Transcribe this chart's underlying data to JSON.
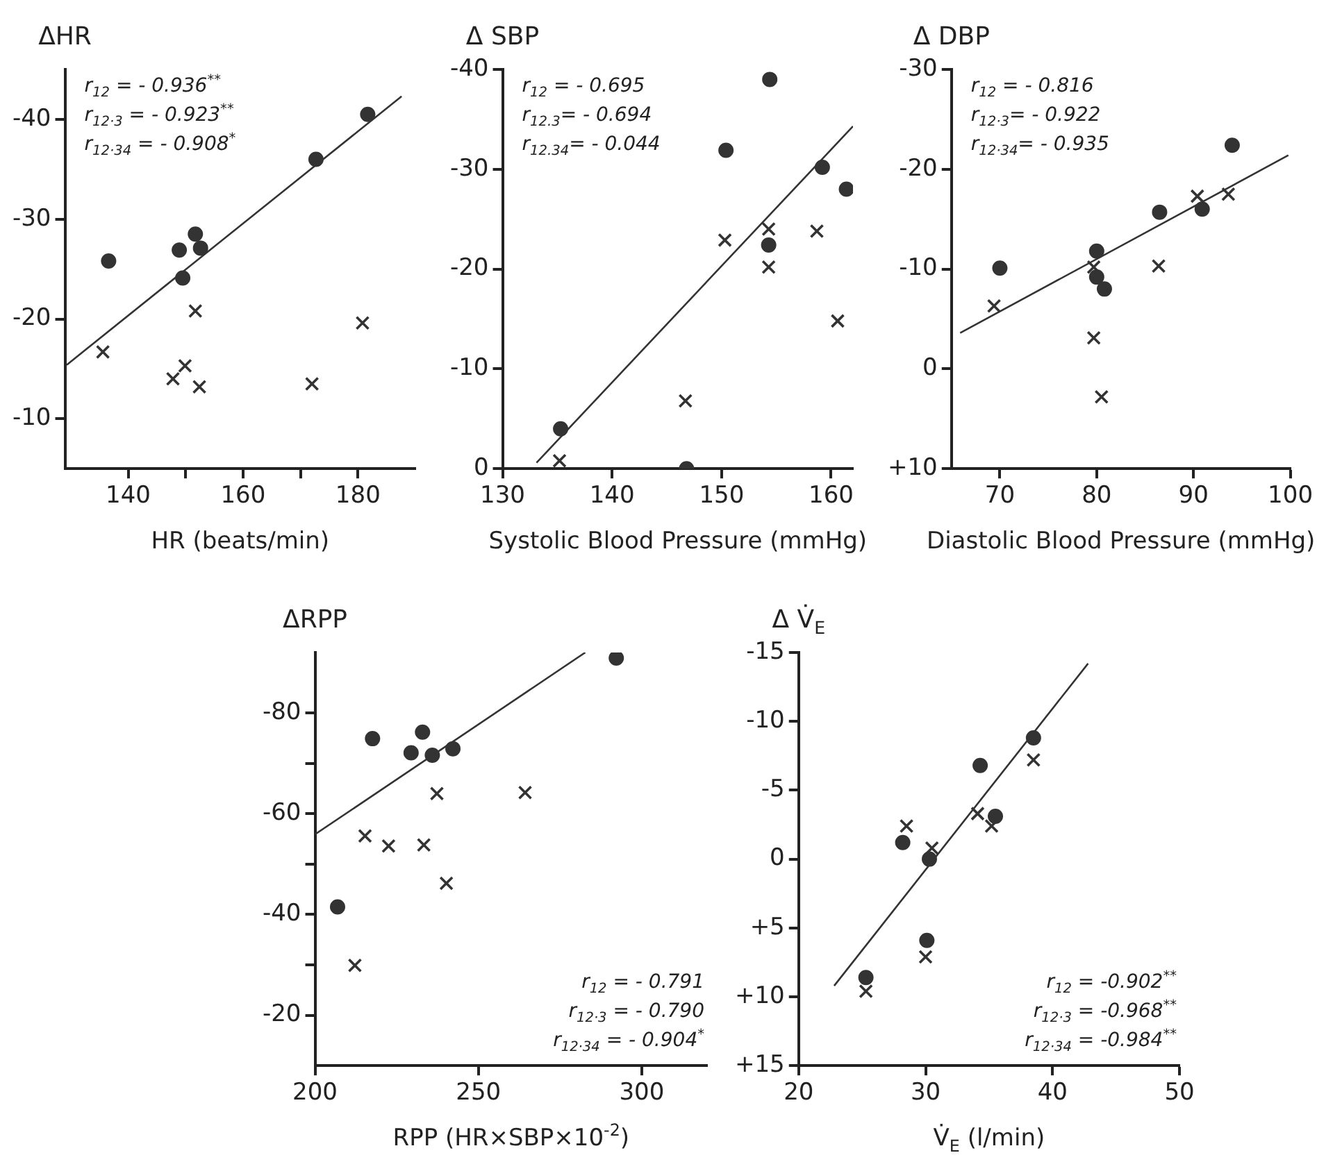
{
  "chart_data": [
    {
      "type": "scatter",
      "xlabel": "HR (beats/min)",
      "ylabel": "ΔHR",
      "xlim": [
        129,
        190
      ],
      "xticks": [
        140,
        {
          "value": 150,
          "label": null
        },
        160,
        {
          "value": 170,
          "label": null
        },
        180
      ],
      "ylim": [
        -5,
        -45
      ],
      "yticks": [
        -10,
        -20,
        -30,
        -40
      ],
      "grid": false,
      "legend": false,
      "annotations": [
        "r$_{12}$ = - 0.936$^{**}$",
        "r$_{12·3}$ = - 0.923$^{**}$",
        "r$_{12·34}$ = - 0.908$^{*}$"
      ],
      "series": [
        {
          "type": "scatter",
          "marker": "circle",
          "color": "#333333",
          "x": [
            136.6,
            148.9,
            149.5,
            151.7,
            152.6,
            172.7,
            181.7
          ],
          "values": [
            -25.8,
            -26.9,
            -24.1,
            -28.5,
            -27.1,
            -36,
            -40.5
          ]
        },
        {
          "type": "scatter",
          "marker": "cross",
          "color": "#333333",
          "x": [
            135.6,
            151.7,
            147.8,
            149.9,
            152.4,
            172,
            180.8
          ],
          "values": [
            -16.7,
            -20.8,
            -14,
            -15.3,
            -13.2,
            -13.5,
            -19.6
          ]
        },
        {
          "type": "line",
          "marker": "none",
          "line_style": "solid",
          "color": "#333333",
          "x": [
            129.3,
            187.6
          ],
          "values": [
            -15.4,
            -42.3
          ]
        }
      ]
    },
    {
      "type": "scatter",
      "xlabel": "Systolic Blood Pressure (mmHg)",
      "ylabel": "Δ SBP",
      "xlim": [
        130,
        162
      ],
      "xticks": [
        130,
        140,
        150,
        160
      ],
      "ylim": [
        0,
        -40
      ],
      "yticks": [
        0,
        -10,
        -20,
        -30,
        -40
      ],
      "grid": false,
      "legend": false,
      "annotations": [
        "r$_{12}$ = - 0.695",
        "r$_{12.3}$= - 0.694",
        "r$_{12.34}$= - 0.044"
      ],
      "series": [
        {
          "type": "scatter",
          "marker": "circle",
          "color": "#333333",
          "x": [
            135.3,
            150.4,
            154.4,
            154.3,
            159.2,
            161.4,
            146.8
          ],
          "values": [
            -4,
            -31.9,
            -39,
            -22.4,
            -30.2,
            -28,
            0
          ]
        },
        {
          "type": "scatter",
          "marker": "cross",
          "color": "#333333",
          "x": [
            135.2,
            146.7,
            150.3,
            154.3,
            154.3,
            158.7,
            160.6
          ],
          "values": [
            -0.8,
            -6.8,
            -22.9,
            -24,
            -20.2,
            -23.8,
            -14.8
          ]
        },
        {
          "type": "line",
          "marker": "none",
          "line_style": "solid",
          "color": "#333333",
          "x": [
            133.1,
            162
          ],
          "values": [
            -0.6,
            -34.3
          ]
        }
      ]
    },
    {
      "type": "scatter",
      "xlabel": "Diastolic Blood Pressure (mmHg)",
      "ylabel": "Δ DBP",
      "xlim": [
        65,
        100
      ],
      "xticks": [
        70,
        80,
        90,
        100
      ],
      "ylim": [
        10,
        -30
      ],
      "yticks": [
        -30,
        -20,
        -10,
        0,
        {
          "value": 10,
          "label": "+10"
        }
      ],
      "grid": false,
      "legend": false,
      "annotations": [
        "r$_{12}$ = - 0.816",
        "r$_{12·3}$= - 0.922",
        "r$_{12·34}$= - 0.935"
      ],
      "series": [
        {
          "type": "scatter",
          "marker": "circle",
          "color": "#333333",
          "x": [
            70,
            80,
            80,
            80.8,
            86.5,
            90.9,
            94
          ],
          "values": [
            -10.1,
            -11.8,
            -9.2,
            -8,
            -15.7,
            -16,
            -22.4
          ]
        },
        {
          "type": "scatter",
          "marker": "cross",
          "color": "#333333",
          "x": [
            69.4,
            79.7,
            79.7,
            80.5,
            86.4,
            90.4,
            93.6
          ],
          "values": [
            -6.3,
            -10.2,
            -3.1,
            2.8,
            -10.3,
            -17.3,
            -17.5
          ]
        },
        {
          "type": "line",
          "marker": "none",
          "line_style": "solid",
          "color": "#333333",
          "x": [
            65.9,
            99.8
          ],
          "values": [
            -3.6,
            -21.4
          ]
        }
      ]
    },
    {
      "type": "scatter",
      "xlabel": "RPP (HR×SBP×10$^{-2}$)",
      "ylabel": "ΔRPP",
      "xlim": [
        200,
        320
      ],
      "xticks": [
        200,
        250,
        300
      ],
      "ylim": [
        -10,
        -92
      ],
      "yticks": [
        -20,
        {
          "value": -30,
          "label": null
        },
        -40,
        {
          "value": -50,
          "label": null
        },
        -60,
        {
          "value": -70,
          "label": null
        },
        -80
      ],
      "grid": false,
      "legend": false,
      "annotations": [
        "r$_{12}$ = - 0.791",
        "r$_{12·3}$ = - 0.790",
        "r$_{12·34}$ = - 0.904$^{*}$"
      ],
      "series": [
        {
          "type": "scatter",
          "marker": "circle",
          "color": "#333333",
          "x": [
            206.9,
            217.6,
            229.4,
            232.9,
            235.9,
            242.2,
            292.2
          ],
          "values": [
            -41.5,
            -74.9,
            -72.1,
            -76.2,
            -71.6,
            -72.9,
            -90.9
          ]
        },
        {
          "type": "scatter",
          "marker": "cross",
          "color": "#333333",
          "x": [
            212.2,
            215.3,
            222.5,
            233.3,
            237.3,
            240.2,
            264.3
          ],
          "values": [
            -29.9,
            -55.6,
            -53.6,
            -53.8,
            -64,
            -46.2,
            -64.2
          ]
        },
        {
          "type": "line",
          "marker": "none",
          "line_style": "solid",
          "color": "#333333",
          "x": [
            200,
            282.7
          ],
          "values": [
            -55.9,
            -92
          ]
        }
      ]
    },
    {
      "type": "scatter",
      "xlabel": "V̇$_{E}$ (l/min)",
      "ylabel": "Δ V̇$_{E}$",
      "xlim": [
        20,
        50
      ],
      "xticks": [
        20,
        30,
        40,
        50
      ],
      "ylim": [
        15,
        -15
      ],
      "yticks": [
        -15,
        -10,
        -5,
        0,
        {
          "value": 5,
          "label": "+5"
        },
        {
          "value": 10,
          "label": "+10"
        },
        {
          "value": 15,
          "label": "+15"
        }
      ],
      "grid": false,
      "legend": false,
      "annotations": [
        "r$_{12}$ = -0.902$^{**}$",
        "r$_{12·3}$ = -0.968$^{**}$",
        "r$_{12·34}$ = -0.984$^{**}$"
      ],
      "series": [
        {
          "type": "scatter",
          "marker": "circle",
          "color": "#333333",
          "x": [
            28.2,
            30.3,
            34.3,
            35.5,
            38.5,
            30.1,
            25.3
          ],
          "values": [
            -1.2,
            0,
            -6.8,
            -3.1,
            -8.8,
            5.9,
            8.6
          ]
        },
        {
          "type": "scatter",
          "marker": "cross",
          "color": "#333333",
          "x": [
            28.5,
            30.5,
            34.1,
            35.2,
            38.5,
            30,
            25.3
          ],
          "values": [
            -2.4,
            -0.8,
            -3.3,
            -2.4,
            -7.2,
            7.1,
            9.6
          ]
        },
        {
          "type": "line",
          "marker": "none",
          "line_style": "solid",
          "color": "#333333",
          "x": [
            22.8,
            42.8
          ],
          "values": [
            9.2,
            -14.2
          ]
        }
      ]
    }
  ]
}
